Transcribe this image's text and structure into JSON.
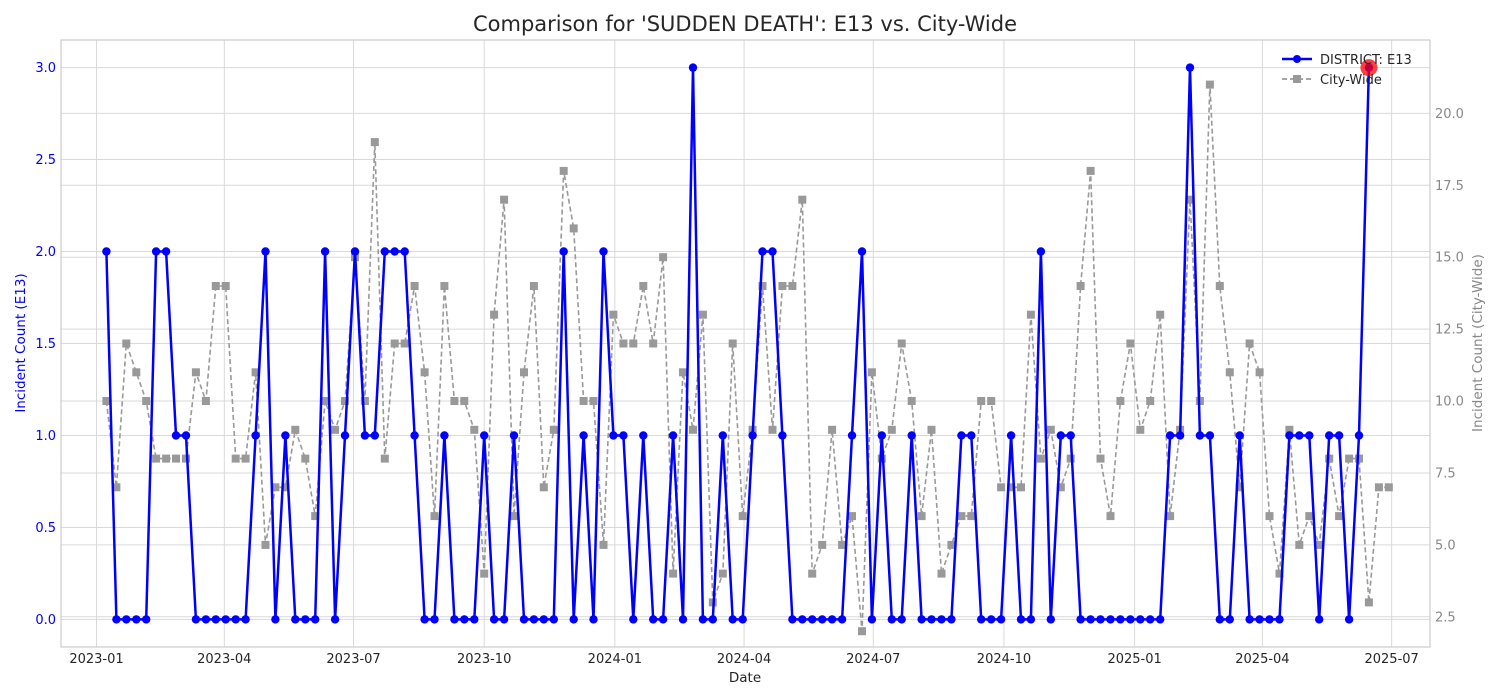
{
  "chart_data": {
    "type": "line",
    "title": "Comparison for 'SUDDEN DEATH': E13 vs. City-Wide",
    "xlabel": "Date",
    "ylabel_left": "Incident Count (E13)",
    "ylabel_right": "Incident Count (City-Wide)",
    "x_ticks": [
      "2023-01",
      "2023-04",
      "2023-07",
      "2023-10",
      "2024-01",
      "2024-04",
      "2024-07",
      "2024-10",
      "2025-01",
      "2025-04",
      "2025-07"
    ],
    "y_left_ticks": [
      "0.0",
      "0.5",
      "1.0",
      "1.5",
      "2.0",
      "2.5",
      "3.0"
    ],
    "y_right_ticks": [
      "2.5",
      "5.0",
      "7.5",
      "10.0",
      "12.5",
      "15.0",
      "17.5",
      "20.0"
    ],
    "ylim_left": [
      -0.15,
      3.15
    ],
    "ylim_right": [
      1.45,
      22.55
    ],
    "x_start": "2023-01-08",
    "interval": "weekly",
    "legend_position": "top-right",
    "grid": true,
    "highlight_last_point": true,
    "highlight_color": "#ff0000",
    "series": [
      {
        "name": "DISTRICT: E13",
        "axis": "left",
        "color": "#0000ff",
        "style": "solid",
        "marker": "circle",
        "values": [
          2,
          0,
          0,
          0,
          0,
          2,
          2,
          1,
          1,
          0,
          0,
          0,
          0,
          0,
          0,
          1,
          2,
          0,
          1,
          0,
          0,
          0,
          2,
          0,
          1,
          2,
          1,
          1,
          2,
          2,
          2,
          1,
          0,
          0,
          1,
          0,
          0,
          0,
          1,
          0,
          0,
          1,
          0,
          0,
          0,
          0,
          2,
          0,
          1,
          0,
          2,
          1,
          1,
          0,
          1,
          0,
          0,
          1,
          0,
          3,
          0,
          0,
          1,
          0,
          0,
          1,
          2,
          2,
          1,
          0,
          0,
          0,
          0,
          0,
          0,
          1,
          2,
          0,
          1,
          0,
          0,
          1,
          0,
          0,
          0,
          0,
          1,
          1,
          0,
          0,
          0,
          1,
          0,
          0,
          2,
          0,
          1,
          1,
          0,
          0,
          0,
          0,
          0,
          0,
          0,
          0,
          0,
          1,
          1,
          3,
          1,
          1,
          0,
          0,
          1,
          0,
          0,
          0,
          0,
          1,
          1,
          1,
          0,
          1,
          1,
          0,
          1,
          3
        ]
      },
      {
        "name": "City-Wide",
        "axis": "right",
        "color": "#999999",
        "style": "dashed",
        "marker": "square",
        "values": [
          10,
          7,
          12,
          11,
          10,
          8,
          8,
          8,
          8,
          11,
          10,
          14,
          14,
          8,
          8,
          11,
          5,
          7,
          7,
          9,
          8,
          6,
          10,
          9,
          10,
          15,
          10,
          19,
          8,
          12,
          12,
          14,
          11,
          6,
          14,
          10,
          10,
          9,
          4,
          13,
          17,
          6,
          11,
          14,
          7,
          9,
          18,
          16,
          10,
          10,
          5,
          13,
          12,
          12,
          14,
          12,
          15,
          4,
          11,
          9,
          13,
          3,
          4,
          12,
          6,
          9,
          14,
          9,
          14,
          14,
          17,
          4,
          5,
          9,
          5,
          6,
          2,
          11,
          8,
          9,
          12,
          10,
          6,
          9,
          4,
          5,
          6,
          6,
          10,
          10,
          7,
          7,
          7,
          13,
          8,
          9,
          7,
          8,
          14,
          18,
          8,
          6,
          10,
          12,
          9,
          10,
          13,
          6,
          9,
          17,
          10,
          21,
          14,
          11,
          7,
          12,
          11,
          6,
          4,
          9,
          5,
          6,
          5,
          8,
          6,
          8,
          8,
          3,
          7,
          7
        ]
      }
    ]
  }
}
